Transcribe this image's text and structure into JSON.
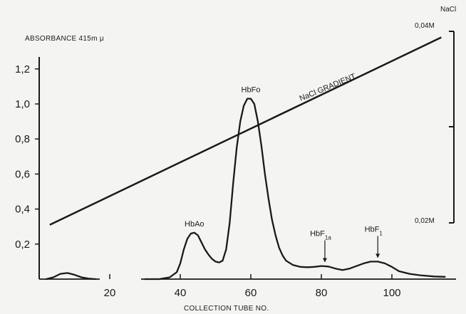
{
  "chart_data": {
    "type": "line",
    "ylabel": "ABSORBANCE 415m μ",
    "xlabel": "COLLECTION TUBE NO.",
    "right_axis_title": "NaCl",
    "right_ticks": [
      "0,04M",
      "0,02M"
    ],
    "xlim": [
      0,
      115
    ],
    "ylim": [
      0,
      1.3
    ],
    "x_ticks": [
      20,
      40,
      60,
      80,
      100
    ],
    "y_ticks": [
      {
        "value": 0.2,
        "label": "0,2"
      },
      {
        "value": 0.4,
        "label": "0,4"
      },
      {
        "value": 0.6,
        "label": "0,6"
      },
      {
        "value": 0.8,
        "label": "0,8"
      },
      {
        "value": 1.0,
        "label": "1,0"
      },
      {
        "value": 1.2,
        "label": "1,2"
      }
    ],
    "series": [
      {
        "name": "",
        "points": [
          [
            2,
            0.0
          ],
          [
            4,
            0.01
          ],
          [
            6,
            0.03
          ],
          [
            8,
            0.035
          ],
          [
            10,
            0.025
          ],
          [
            12,
            0.01
          ],
          [
            14,
            0.003
          ],
          [
            16,
            0.0
          ],
          [
            30,
            0.0
          ],
          [
            34,
            0.0
          ],
          [
            37,
            0.01
          ],
          [
            39,
            0.04
          ],
          [
            40,
            0.09
          ],
          [
            41,
            0.17
          ],
          [
            42,
            0.23
          ],
          [
            43,
            0.26
          ],
          [
            44,
            0.265
          ],
          [
            45,
            0.25
          ],
          [
            46,
            0.21
          ],
          [
            47,
            0.17
          ],
          [
            48,
            0.14
          ],
          [
            49,
            0.115
          ],
          [
            50,
            0.1
          ],
          [
            51,
            0.095
          ],
          [
            52,
            0.105
          ],
          [
            53,
            0.17
          ],
          [
            54,
            0.32
          ],
          [
            55,
            0.55
          ],
          [
            56,
            0.75
          ],
          [
            57,
            0.9
          ],
          [
            58,
            0.99
          ],
          [
            59,
            1.03
          ],
          [
            60,
            1.03
          ],
          [
            61,
            1.0
          ],
          [
            62,
            0.9
          ],
          [
            63,
            0.76
          ],
          [
            64,
            0.6
          ],
          [
            65,
            0.46
          ],
          [
            66,
            0.34
          ],
          [
            67,
            0.25
          ],
          [
            68,
            0.18
          ],
          [
            69,
            0.135
          ],
          [
            70,
            0.105
          ],
          [
            72,
            0.08
          ],
          [
            74,
            0.07
          ],
          [
            76,
            0.068
          ],
          [
            78,
            0.07
          ],
          [
            80,
            0.075
          ],
          [
            82,
            0.072
          ],
          [
            84,
            0.06
          ],
          [
            86,
            0.052
          ],
          [
            88,
            0.06
          ],
          [
            90,
            0.075
          ],
          [
            92,
            0.09
          ],
          [
            94,
            0.1
          ],
          [
            96,
            0.1
          ],
          [
            98,
            0.09
          ],
          [
            100,
            0.07
          ],
          [
            102,
            0.045
          ],
          [
            105,
            0.03
          ],
          [
            108,
            0.022
          ],
          [
            112,
            0.015
          ],
          [
            115,
            0.013
          ]
        ]
      }
    ],
    "gradient_line": {
      "label": "NaCl GRADIENT",
      "from": [
        3,
        0.31
      ],
      "to": [
        114,
        1.38
      ]
    },
    "annotations": [
      {
        "text": "HbAo",
        "x": 44,
        "y": 0.265
      },
      {
        "text": "HbFo",
        "x": 60,
        "y": 1.03
      },
      {
        "text": "HbF",
        "sub": "1a",
        "x": 81,
        "y": 0.075,
        "arrow": true
      },
      {
        "text": "HbF",
        "sub": "1",
        "x": 96,
        "y": 0.1,
        "arrow": true
      }
    ]
  }
}
